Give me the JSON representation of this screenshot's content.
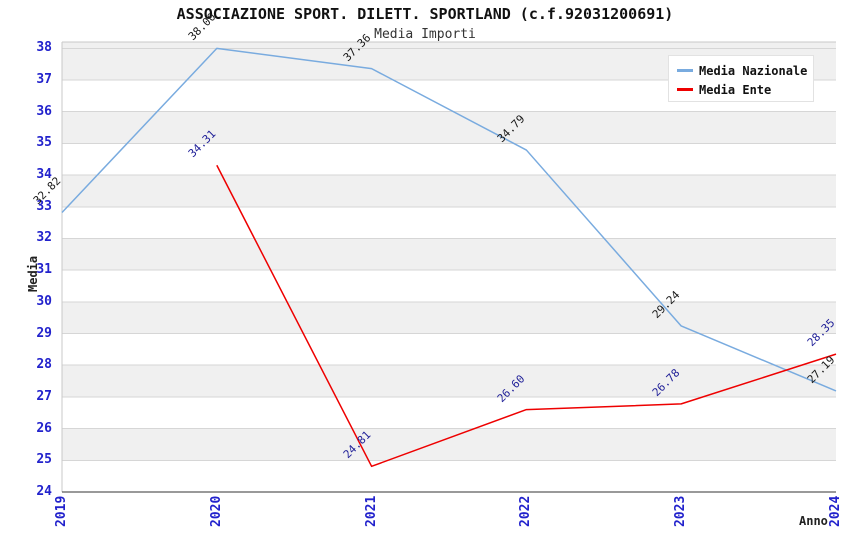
{
  "title": "ASSOCIAZIONE SPORT. DILETT. SPORTLAND (c.f.92031200691)",
  "subtitle": "Media Importi",
  "axes": {
    "ylabel": "Media",
    "xlabel": "Anno"
  },
  "legend": {
    "position": "top-right",
    "items": [
      {
        "label": "Media Nazionale",
        "color": "#79abdf"
      },
      {
        "label": "Media Ente",
        "color": "#ee0000"
      }
    ]
  },
  "chart_data": {
    "type": "line",
    "title": "Media Importi",
    "xlabel": "Anno",
    "ylabel": "Media",
    "x": [
      "2019",
      "2020",
      "2021",
      "2022",
      "2023",
      "2024"
    ],
    "series": [
      {
        "name": "Media Nazionale",
        "color": "#79abdf",
        "label_color": "#1a1a1a",
        "values": [
          32.82,
          38.0,
          37.36,
          34.79,
          29.24,
          27.19
        ],
        "labels": [
          "32.82",
          "38.00",
          "37.36",
          "34.79",
          "29.24",
          "27.19"
        ]
      },
      {
        "name": "Media Ente",
        "color": "#ee0000",
        "label_color": "#222299",
        "values": [
          null,
          34.31,
          24.81,
          26.6,
          26.78,
          28.35
        ],
        "labels": [
          null,
          "34.31",
          "24.81",
          "26.60",
          "26.78",
          "28.35"
        ]
      }
    ],
    "ylim": [
      24,
      38.2
    ],
    "yticks": [
      24,
      25,
      26,
      27,
      28,
      29,
      30,
      31,
      32,
      33,
      34,
      35,
      36,
      37,
      38
    ],
    "grid": "horizontal",
    "band_color": "#f0f0f0",
    "gridline_color": "#d6d6d6",
    "border_color": "#c9c9c9",
    "axis_line_color": "#333333",
    "tick_label_color": "#2222cc",
    "legend_position": "top-right"
  }
}
